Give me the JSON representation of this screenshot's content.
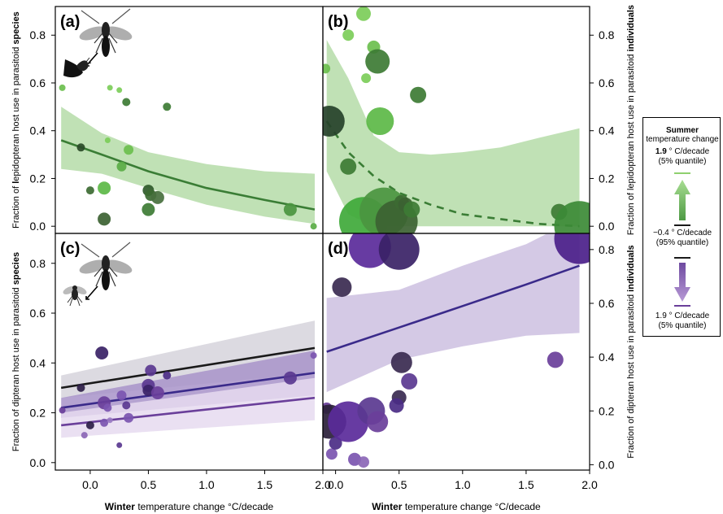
{
  "chart_data": [
    {
      "panel": "(a)",
      "type": "scatter",
      "xlabel_bold": "Winter",
      "xlabel_rest": " temperature change °C/decade",
      "ylabel_parts": [
        "Fraction of ",
        "l",
        "epidopteran host use in parasitoid ",
        "species"
      ],
      "xlim": [
        -0.3,
        2.0
      ],
      "ylim": [
        -0.03,
        0.92
      ],
      "y_ticks": [
        "0.0",
        "0.2",
        "0.4",
        "0.6",
        "0.8"
      ],
      "x_ticks": [
        "0.0",
        "0.5",
        "1.0",
        "1.5",
        "2.0"
      ],
      "points": [
        {
          "x": -0.24,
          "y": 0.58,
          "r": 4,
          "color": "#6bbf4e"
        },
        {
          "x": -0.05,
          "y": 0.67,
          "r": 4,
          "color": "#6bbf4e"
        },
        {
          "x": -0.08,
          "y": 0.33,
          "r": 5,
          "color": "#2a4a28"
        },
        {
          "x": 0.0,
          "y": 0.15,
          "r": 5,
          "color": "#3c6a32"
        },
        {
          "x": 0.12,
          "y": 0.16,
          "r": 8,
          "color": "#5cb847"
        },
        {
          "x": 0.12,
          "y": 0.03,
          "r": 8,
          "color": "#3c6232"
        },
        {
          "x": 0.15,
          "y": 0.36,
          "r": 3.5,
          "color": "#7ccd59"
        },
        {
          "x": 0.17,
          "y": 0.58,
          "r": 3.5,
          "color": "#7ccd59"
        },
        {
          "x": 0.25,
          "y": 0.57,
          "r": 3.5,
          "color": "#7ccd59"
        },
        {
          "x": 0.27,
          "y": 0.25,
          "r": 6,
          "color": "#5aac45"
        },
        {
          "x": 0.31,
          "y": 0.52,
          "r": 5,
          "color": "#3d7b34"
        },
        {
          "x": 0.33,
          "y": 0.32,
          "r": 6,
          "color": "#6bbf4e"
        },
        {
          "x": 0.5,
          "y": 0.15,
          "r": 7,
          "color": "#2f5a2a"
        },
        {
          "x": 0.52,
          "y": 0.13,
          "r": 7,
          "color": "#3c6a32"
        },
        {
          "x": 0.5,
          "y": 0.07,
          "r": 8,
          "color": "#3d7b34"
        },
        {
          "x": 0.58,
          "y": 0.12,
          "r": 8,
          "color": "#48703e"
        },
        {
          "x": 0.66,
          "y": 0.5,
          "r": 5,
          "color": "#3d7b34"
        },
        {
          "x": 1.72,
          "y": 0.07,
          "r": 8,
          "color": "#4b9540"
        },
        {
          "x": 1.92,
          "y": 0.0,
          "r": 4,
          "color": "#5aac45"
        }
      ],
      "fits": [
        {
          "style": "solid",
          "color": "#3a7d35",
          "band": "#b5dca8",
          "x": [
            -0.25,
            0.1,
            0.5,
            1.0,
            1.5,
            1.93
          ],
          "y": [
            0.36,
            0.3,
            0.23,
            0.16,
            0.11,
            0.07
          ],
          "lo": [
            0.24,
            0.22,
            0.16,
            0.09,
            0.04,
            0.01
          ],
          "hi": [
            0.5,
            0.39,
            0.31,
            0.26,
            0.23,
            0.22
          ]
        }
      ]
    },
    {
      "panel": "(b)",
      "type": "scatter",
      "xlabel_bold": "Winter",
      "xlabel_rest": " temperature change °C/decade",
      "ylabel_parts": [
        "Fraction of lepidopteran host use in parasitoid ",
        "individuals"
      ],
      "xlim": [
        -0.1,
        2.0
      ],
      "ylim": [
        -0.03,
        0.92
      ],
      "y_ticks": [
        "0.0",
        "0.2",
        "0.4",
        "0.6",
        "0.8"
      ],
      "x_ticks": [
        "0.0",
        "0.5",
        "1.0",
        "1.5",
        "2.0"
      ],
      "points": [
        {
          "x": -0.08,
          "y": 0.66,
          "r": 6,
          "color": "#6bbf4e"
        },
        {
          "x": -0.05,
          "y": 0.44,
          "r": 19,
          "color": "#26412a"
        },
        {
          "x": 0.1,
          "y": 0.8,
          "r": 7,
          "color": "#7ccd59"
        },
        {
          "x": 0.1,
          "y": 0.25,
          "r": 10,
          "color": "#3d7b34"
        },
        {
          "x": 0.22,
          "y": 0.89,
          "r": 9,
          "color": "#7ccd59"
        },
        {
          "x": 0.24,
          "y": 0.62,
          "r": 6,
          "color": "#7ccd59"
        },
        {
          "x": 0.3,
          "y": 0.75,
          "r": 8,
          "color": "#6bbf4e"
        },
        {
          "x": 0.33,
          "y": 0.69,
          "r": 15,
          "color": "#3d7b34"
        },
        {
          "x": 0.35,
          "y": 0.44,
          "r": 17,
          "color": "#5cb847"
        },
        {
          "x": 0.22,
          "y": 0.02,
          "r": 30,
          "color": "#3fa93a"
        },
        {
          "x": 0.38,
          "y": 0.06,
          "r": 30,
          "color": "#4b9540"
        },
        {
          "x": 0.48,
          "y": 0.02,
          "r": 26,
          "color": "#3c6232"
        },
        {
          "x": 0.52,
          "y": 0.1,
          "r": 9,
          "color": "#3c6a32"
        },
        {
          "x": 0.55,
          "y": 0.09,
          "r": 9,
          "color": "#3c6232"
        },
        {
          "x": 0.6,
          "y": 0.07,
          "r": 10,
          "color": "#3d7b34"
        },
        {
          "x": 0.65,
          "y": 0.55,
          "r": 10,
          "color": "#3d7b34"
        },
        {
          "x": 1.76,
          "y": 0.06,
          "r": 10,
          "color": "#3d7b34"
        },
        {
          "x": 1.92,
          "y": 0.0,
          "r": 31,
          "color": "#3c8a36"
        }
      ],
      "fits": [
        {
          "style": "dashed",
          "color": "#3a7d35",
          "band": "#b5dca8",
          "x": [
            -0.07,
            0.1,
            0.3,
            0.5,
            0.75,
            1.0,
            1.3,
            1.6,
            1.92
          ],
          "y": [
            0.44,
            0.31,
            0.21,
            0.14,
            0.09,
            0.05,
            0.03,
            0.01,
            0.0
          ],
          "lo": [
            0.23,
            0.05,
            0.0,
            0.0,
            0.0,
            0.0,
            0.0,
            0.0,
            0.0
          ],
          "hi": [
            0.78,
            0.62,
            0.38,
            0.31,
            0.3,
            0.31,
            0.33,
            0.37,
            0.41
          ]
        }
      ]
    },
    {
      "panel": "(c)",
      "type": "scatter",
      "xlabel_bold": "Winter",
      "xlabel_rest": " temperature change °C/decade",
      "ylabel_parts": [
        "Fraction of dipteran host use in parasitoid ",
        "species"
      ],
      "xlim": [
        -0.3,
        2.0
      ],
      "ylim": [
        -0.03,
        0.92
      ],
      "y_ticks": [
        "0.0",
        "0.2",
        "0.4",
        "0.6",
        "0.8"
      ],
      "x_ticks": [
        "0.0",
        "0.5",
        "1.0",
        "1.5",
        "2.0"
      ],
      "points": [
        {
          "x": -0.24,
          "y": 0.21,
          "r": 4,
          "color": "#6a3f9a"
        },
        {
          "x": -0.08,
          "y": 0.3,
          "r": 5,
          "color": "#2d1e48"
        },
        {
          "x": -0.05,
          "y": 0.11,
          "r": 4,
          "color": "#8b66b6"
        },
        {
          "x": 0.0,
          "y": 0.15,
          "r": 5,
          "color": "#2d1e48"
        },
        {
          "x": 0.12,
          "y": 0.16,
          "r": 5,
          "color": "#7b55b0"
        },
        {
          "x": 0.1,
          "y": 0.44,
          "r": 8,
          "color": "#3a2266"
        },
        {
          "x": 0.12,
          "y": 0.24,
          "r": 8,
          "color": "#6a3f9a"
        },
        {
          "x": 0.15,
          "y": 0.22,
          "r": 5,
          "color": "#7b55b0"
        },
        {
          "x": 0.17,
          "y": 0.17,
          "r": 3.5,
          "color": "#9a7cc3"
        },
        {
          "x": 0.25,
          "y": 0.07,
          "r": 3.5,
          "color": "#5a3890"
        },
        {
          "x": 0.27,
          "y": 0.27,
          "r": 6,
          "color": "#7b55b0"
        },
        {
          "x": 0.31,
          "y": 0.23,
          "r": 5,
          "color": "#5a3890"
        },
        {
          "x": 0.33,
          "y": 0.18,
          "r": 6,
          "color": "#7b55b0"
        },
        {
          "x": 0.5,
          "y": 0.31,
          "r": 8,
          "color": "#5a3890"
        },
        {
          "x": 0.52,
          "y": 0.37,
          "r": 7,
          "color": "#5a3890"
        },
        {
          "x": 0.5,
          "y": 0.29,
          "r": 7,
          "color": "#3a2266"
        },
        {
          "x": 0.58,
          "y": 0.28,
          "r": 8,
          "color": "#6a3f9a"
        },
        {
          "x": 0.66,
          "y": 0.35,
          "r": 5,
          "color": "#4b2c86"
        },
        {
          "x": 1.72,
          "y": 0.34,
          "r": 8,
          "color": "#5a3890"
        },
        {
          "x": 1.92,
          "y": 0.43,
          "r": 4,
          "color": "#7b55b0"
        }
      ],
      "fits": [
        {
          "style": "solid",
          "color": "#1a1a1a",
          "band": "#d6d3dc",
          "x": [
            -0.25,
            1.93
          ],
          "y": [
            0.3,
            0.46
          ],
          "lo": [
            0.26,
            0.36
          ],
          "hi": [
            0.35,
            0.57
          ]
        },
        {
          "style": "solid",
          "color": "#3a2a8a",
          "band": "#a893c9",
          "x": [
            -0.25,
            1.93
          ],
          "y": [
            0.22,
            0.36
          ],
          "lo": [
            0.18,
            0.27
          ],
          "hi": [
            0.26,
            0.45
          ]
        },
        {
          "style": "solid",
          "color": "#6a3f9a",
          "band": "#e6daf0",
          "x": [
            -0.25,
            1.93
          ],
          "y": [
            0.15,
            0.26
          ],
          "lo": [
            0.1,
            0.17
          ],
          "hi": [
            0.2,
            0.34
          ]
        }
      ]
    },
    {
      "panel": "(d)",
      "type": "scatter",
      "xlabel_bold": "Winter",
      "xlabel_rest": " temperature change °C/decade",
      "ylabel_parts": [
        "Fraction of dipteran host use in parasitoid ",
        "individuals"
      ],
      "xlim": [
        -0.1,
        2.0
      ],
      "ylim": [
        -0.02,
        0.86
      ],
      "y_ticks": [
        "0.0",
        "0.2",
        "0.4",
        "0.6",
        "0.8"
      ],
      "x_ticks": [
        "0.0",
        "0.5",
        "1.0",
        "1.5",
        "2.0"
      ],
      "points": [
        {
          "x": -0.07,
          "y": 0.21,
          "r": 7,
          "color": "#6a3f9a"
        },
        {
          "x": -0.05,
          "y": 0.16,
          "r": 21,
          "color": "#2a1f38"
        },
        {
          "x": -0.03,
          "y": 0.04,
          "r": 7,
          "color": "#7b55b0"
        },
        {
          "x": 0.0,
          "y": 0.08,
          "r": 8,
          "color": "#4b2c86"
        },
        {
          "x": 0.05,
          "y": 0.66,
          "r": 12,
          "color": "#3a2a50"
        },
        {
          "x": 0.1,
          "y": 0.16,
          "r": 25,
          "color": "#5a2a9a"
        },
        {
          "x": 0.15,
          "y": 0.02,
          "r": 8,
          "color": "#7b55b0"
        },
        {
          "x": 0.22,
          "y": 0.01,
          "r": 7,
          "color": "#8b66b6"
        },
        {
          "x": 0.27,
          "y": 0.81,
          "r": 26,
          "color": "#5a2a9a"
        },
        {
          "x": 0.28,
          "y": 0.2,
          "r": 17,
          "color": "#5a3890"
        },
        {
          "x": 0.33,
          "y": 0.16,
          "r": 13,
          "color": "#6a3f9a"
        },
        {
          "x": 0.5,
          "y": 0.8,
          "r": 25,
          "color": "#3a2266"
        },
        {
          "x": 0.52,
          "y": 0.38,
          "r": 13,
          "color": "#3a2a50"
        },
        {
          "x": 0.58,
          "y": 0.31,
          "r": 10,
          "color": "#5a3890"
        },
        {
          "x": 0.5,
          "y": 0.25,
          "r": 9,
          "color": "#3a2a50"
        },
        {
          "x": 0.48,
          "y": 0.22,
          "r": 9,
          "color": "#4b2c86"
        },
        {
          "x": 1.73,
          "y": 0.39,
          "r": 10,
          "color": "#6a3f9a"
        },
        {
          "x": 1.92,
          "y": 0.84,
          "r": 31,
          "color": "#4b1f8a"
        }
      ],
      "fits": [
        {
          "style": "solid",
          "color": "#3a2a8a",
          "band": "#cdbfe0",
          "x": [
            -0.07,
            0.5,
            1.0,
            1.5,
            1.92
          ],
          "y": [
            0.42,
            0.51,
            0.59,
            0.67,
            0.74
          ],
          "lo": [
            0.27,
            0.39,
            0.44,
            0.48,
            0.49
          ],
          "hi": [
            0.62,
            0.65,
            0.74,
            0.82,
            0.92
          ]
        }
      ]
    }
  ],
  "legend": {
    "title": "Summer",
    "subtitle": "temperature change",
    "top_value_strong": "1.9",
    "top_value_unit": " ° C/decade",
    "top_quantile": "(5% quantile)",
    "mid_value": "−0.4",
    "mid_value_unit": " ° C/decade",
    "mid_quantile": "(95% quantile)",
    "bottom_value": "1.9",
    "bottom_value_unit": " ° C/decade",
    "bottom_quantile": "(5% quantile)",
    "green_light": "#9fd98a",
    "green_dark": "#4e9a44",
    "purple_light": "#b89ad6",
    "purple_dark": "#6e4aa0"
  },
  "icons": {
    "wasp": "wasp-icon",
    "moth": "moth-icon",
    "fly": "fly-icon"
  }
}
